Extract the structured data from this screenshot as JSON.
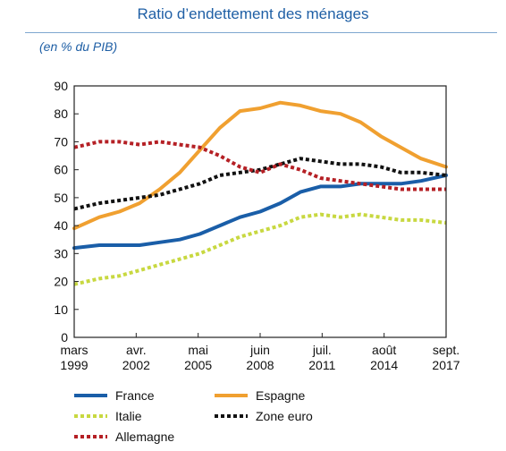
{
  "chart_data": {
    "type": "line",
    "title": "Ratio d’endettement des ménages",
    "subtitle": "(en % du PIB)",
    "ylim": [
      0,
      90
    ],
    "yticks": [
      0,
      10,
      20,
      30,
      40,
      50,
      60,
      70,
      80,
      90
    ],
    "xlim": [
      "1999-03",
      "2017-09"
    ],
    "xticks": [
      {
        "x": "1999-03",
        "label": [
          "mars",
          "1999"
        ]
      },
      {
        "x": "2002-04",
        "label": [
          "avr.",
          "2002"
        ]
      },
      {
        "x": "2005-05",
        "label": [
          "mai",
          "2005"
        ]
      },
      {
        "x": "2008-06",
        "label": [
          "juin",
          "2008"
        ]
      },
      {
        "x": "2011-07",
        "label": [
          "juil.",
          "2011"
        ]
      },
      {
        "x": "2014-08",
        "label": [
          "août",
          "2014"
        ]
      },
      {
        "x": "2017-09",
        "label": [
          "sept.",
          "2017"
        ]
      }
    ],
    "legend_position": "bottom",
    "series": [
      {
        "name": "France",
        "color": "#1a5ea8",
        "style": "solid",
        "x": [
          "1999-03",
          "2000-06",
          "2001-06",
          "2002-06",
          "2003-06",
          "2004-06",
          "2005-06",
          "2006-06",
          "2007-06",
          "2008-06",
          "2009-06",
          "2010-06",
          "2011-06",
          "2012-06",
          "2013-06",
          "2014-06",
          "2015-06",
          "2016-06",
          "2017-09"
        ],
        "y": [
          32,
          33,
          33,
          33,
          34,
          35,
          37,
          40,
          43,
          45,
          48,
          52,
          54,
          54,
          55,
          55,
          55,
          56,
          58
        ]
      },
      {
        "name": "Espagne",
        "color": "#f0a030",
        "style": "solid",
        "x": [
          "1999-03",
          "2000-06",
          "2001-06",
          "2002-06",
          "2003-06",
          "2004-06",
          "2005-06",
          "2006-06",
          "2007-06",
          "2008-06",
          "2009-06",
          "2010-06",
          "2011-06",
          "2012-06",
          "2013-06",
          "2014-06",
          "2015-06",
          "2016-06",
          "2017-09"
        ],
        "y": [
          39,
          43,
          45,
          48,
          53,
          59,
          67,
          75,
          81,
          82,
          84,
          83,
          81,
          80,
          77,
          72,
          68,
          64,
          61
        ]
      },
      {
        "name": "Italie",
        "color": "#c8d840",
        "style": "dotted",
        "x": [
          "1999-03",
          "2000-06",
          "2001-06",
          "2002-06",
          "2003-06",
          "2004-06",
          "2005-06",
          "2006-06",
          "2007-06",
          "2008-06",
          "2009-06",
          "2010-06",
          "2011-06",
          "2012-06",
          "2013-06",
          "2014-06",
          "2015-06",
          "2016-06",
          "2017-09"
        ],
        "y": [
          19,
          21,
          22,
          24,
          26,
          28,
          30,
          33,
          36,
          38,
          40,
          43,
          44,
          43,
          44,
          43,
          42,
          42,
          41
        ]
      },
      {
        "name": "Zone euro",
        "color": "#111111",
        "style": "dotted",
        "x": [
          "1999-03",
          "2000-06",
          "2001-06",
          "2002-06",
          "2003-06",
          "2004-06",
          "2005-06",
          "2006-06",
          "2007-06",
          "2008-06",
          "2009-06",
          "2010-06",
          "2011-06",
          "2012-06",
          "2013-06",
          "2014-06",
          "2015-06",
          "2016-06",
          "2017-09"
        ],
        "y": [
          46,
          48,
          49,
          50,
          51,
          53,
          55,
          58,
          59,
          60,
          62,
          64,
          63,
          62,
          62,
          61,
          59,
          59,
          58
        ]
      },
      {
        "name": "Allemagne",
        "color": "#b52025",
        "style": "dotted",
        "x": [
          "1999-03",
          "2000-06",
          "2001-06",
          "2002-06",
          "2003-06",
          "2004-06",
          "2005-06",
          "2006-06",
          "2007-06",
          "2008-06",
          "2009-06",
          "2010-06",
          "2011-06",
          "2012-06",
          "2013-06",
          "2014-06",
          "2015-06",
          "2016-06",
          "2017-09"
        ],
        "y": [
          68,
          70,
          70,
          69,
          70,
          69,
          68,
          65,
          61,
          59,
          62,
          60,
          57,
          56,
          55,
          54,
          53,
          53,
          53
        ]
      }
    ]
  }
}
